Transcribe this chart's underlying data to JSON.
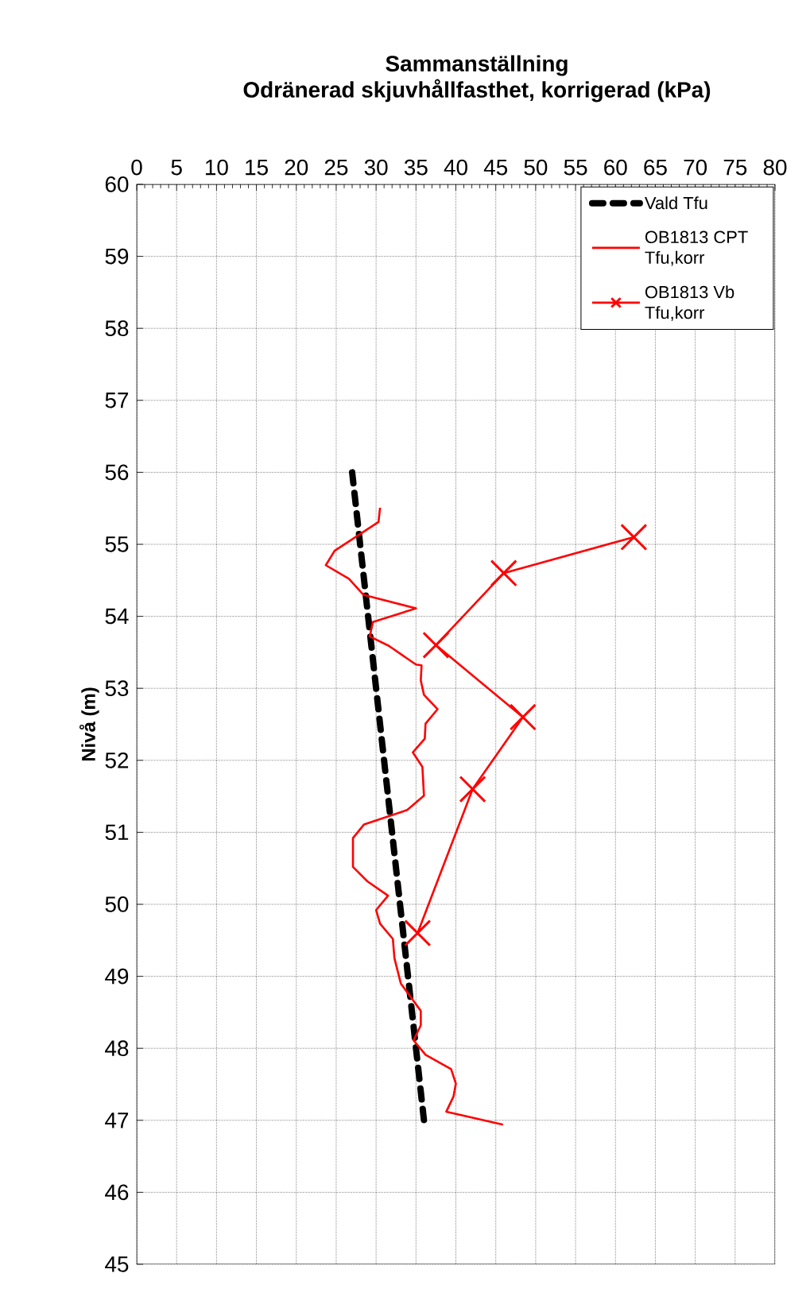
{
  "chart_data": {
    "type": "line",
    "title": "Sammanställning",
    "subtitle": "Odränerad skjuvhållfasthet, korrigerad (kPa)",
    "ylabel": "Nivå (m)",
    "xlim": [
      0,
      80
    ],
    "xticks": [
      0,
      5,
      10,
      15,
      20,
      25,
      30,
      35,
      40,
      45,
      50,
      55,
      60,
      65,
      70,
      75,
      80
    ],
    "ylim": [
      45,
      60
    ],
    "yticks": [
      45,
      46,
      47,
      48,
      49,
      50,
      51,
      52,
      53,
      54,
      55,
      56,
      57,
      58,
      59,
      60
    ],
    "grid": true,
    "legend": "top right",
    "series": [
      {
        "name": "Vald Tfu",
        "color": "#000000",
        "line_style": "dashed",
        "marker": "none",
        "x": [
          27,
          36
        ],
        "values": [
          56,
          47
        ]
      },
      {
        "name": "OB1813 CPT Tfu,korr",
        "color": "#ff0000",
        "line_style": "solid",
        "marker": "none",
        "x": [
          30.5,
          30.3,
          24.8,
          23.7,
          26.6,
          28.4,
          35.0,
          29.6,
          29.2,
          31.6,
          35.0,
          35.7,
          35.6,
          36.0,
          37.7,
          36.2,
          36.1,
          34.6,
          35.8,
          36.0,
          33.9,
          28.5,
          27.1,
          27.1,
          28.9,
          31.5,
          30.0,
          30.5,
          32.1,
          32.3,
          33.1,
          35.6,
          35.6,
          34.7,
          36.2,
          39.4,
          40.0,
          39.7,
          38.8,
          45.9
        ],
        "values": [
          55.51,
          55.31,
          54.91,
          54.71,
          54.52,
          54.3,
          54.11,
          53.92,
          53.72,
          53.59,
          53.33,
          53.32,
          53.11,
          52.91,
          52.71,
          52.51,
          52.3,
          52.11,
          51.91,
          51.51,
          51.31,
          51.11,
          50.92,
          50.52,
          50.32,
          50.12,
          49.92,
          49.73,
          49.52,
          49.25,
          48.9,
          48.52,
          48.32,
          48.11,
          47.91,
          47.71,
          47.51,
          47.33,
          47.12,
          46.94
        ]
      },
      {
        "name": "OB1813 Vb Tfu,korr",
        "color": "#ff0000",
        "line_style": "solid",
        "marker": "cross",
        "x": [
          62.3,
          46.0,
          37.5,
          48.4,
          42.1,
          35.2
        ],
        "values": [
          55.1,
          54.6,
          53.6,
          52.6,
          51.6,
          49.6
        ]
      }
    ]
  }
}
